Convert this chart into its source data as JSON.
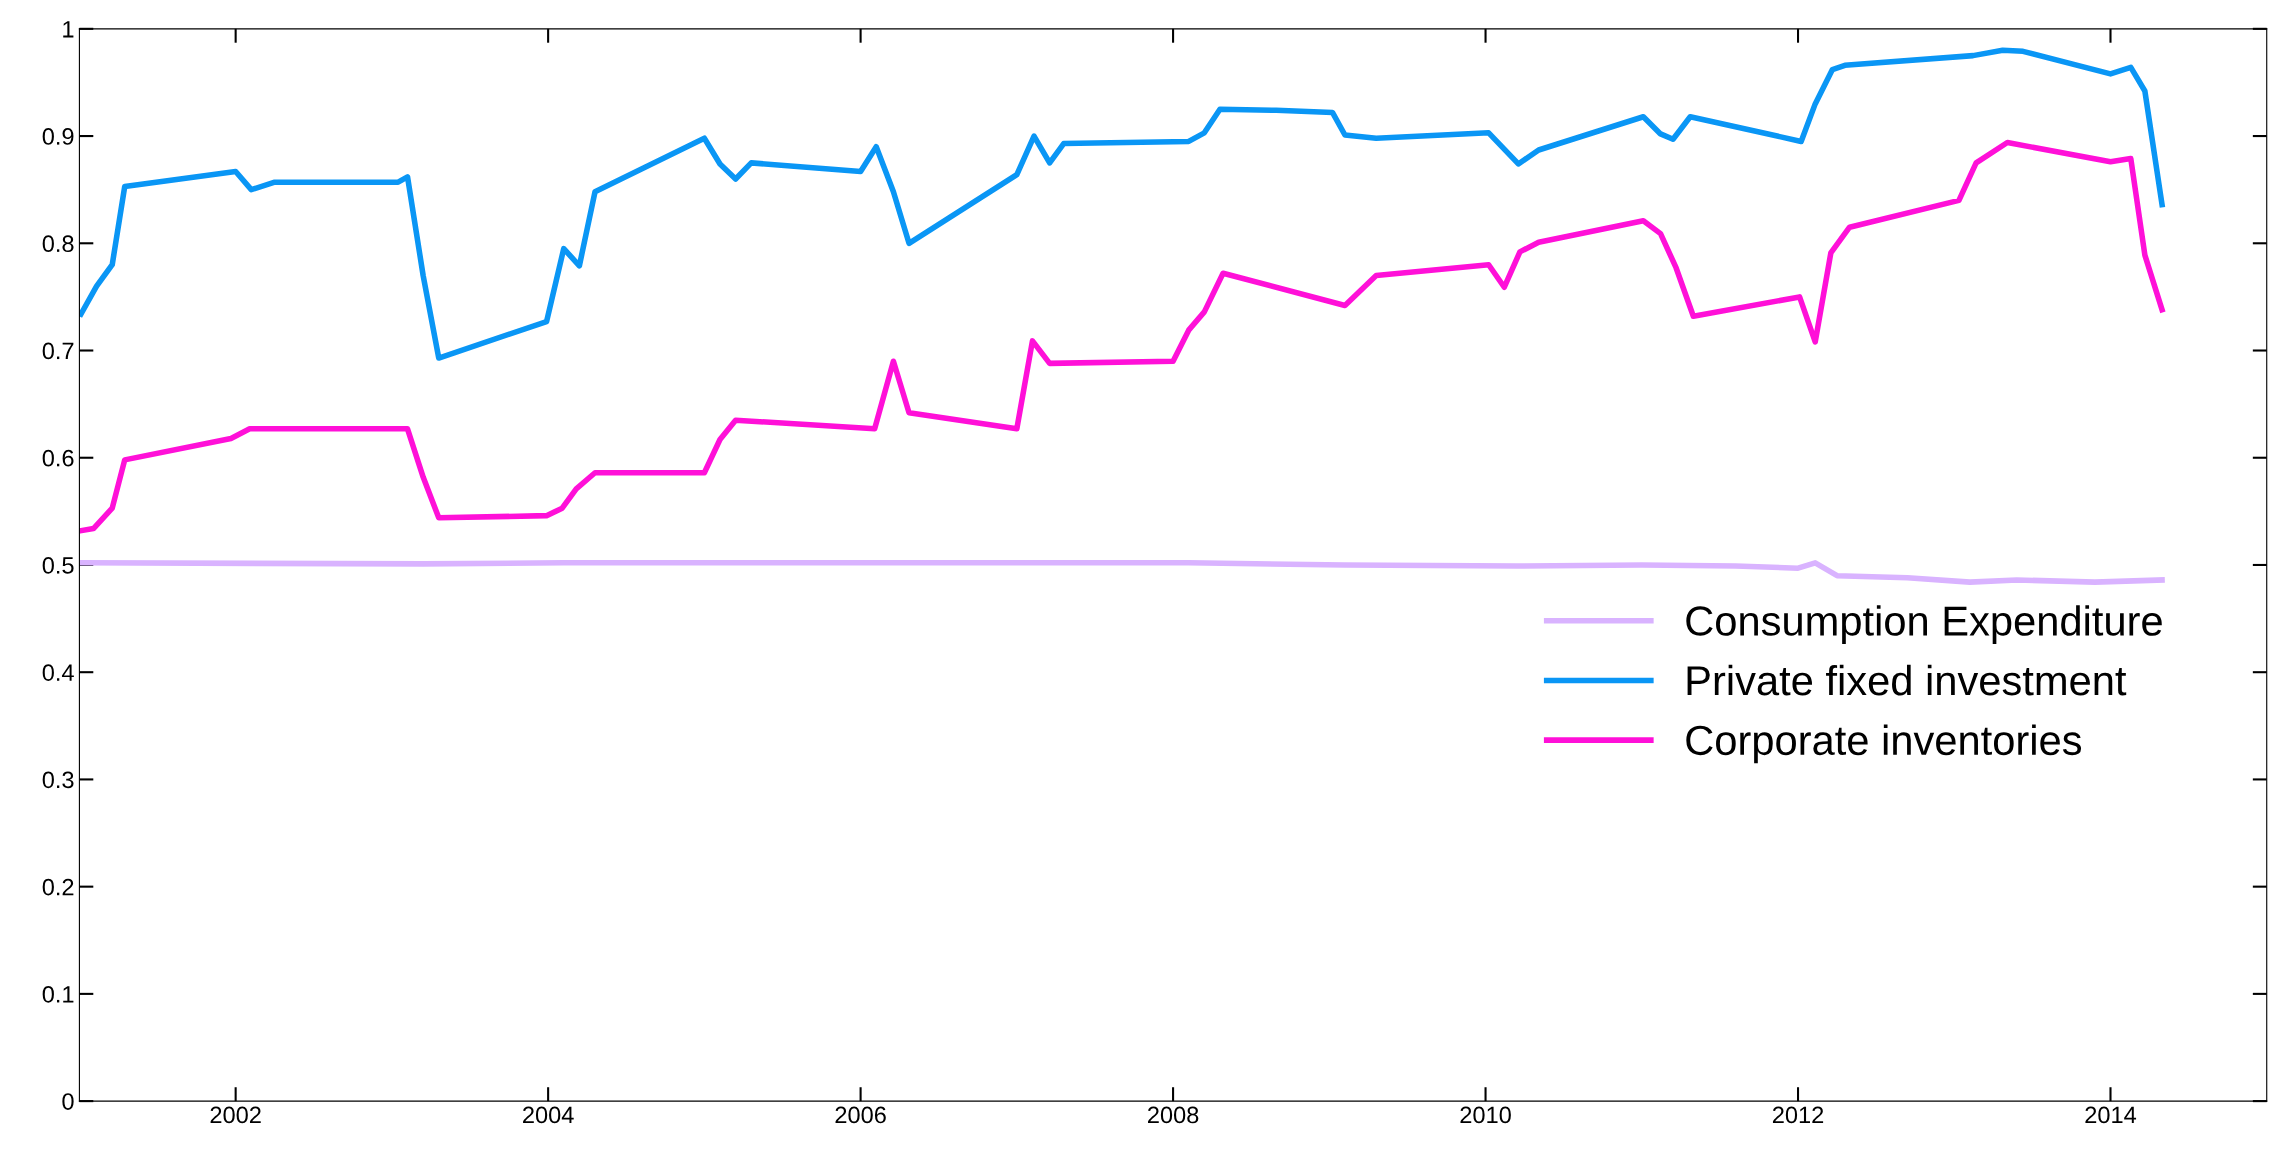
{
  "chart_data": {
    "type": "line",
    "xlim": [
      2001,
      2015
    ],
    "xticks": [
      2002,
      2004,
      2006,
      2008,
      2010,
      2012,
      2014
    ],
    "ylim": [
      0,
      1
    ],
    "yticks": [
      0,
      0.1,
      0.2,
      0.3,
      0.4,
      0.5,
      0.6,
      0.7,
      0.8,
      0.9,
      1
    ],
    "grid": false,
    "legend": "bottom right",
    "marker": "none",
    "line_style": "solid",
    "series": [
      {
        "name": "Consumption Expenditure",
        "color": "#d9b3ff",
        "x": [
          2001.0,
          2003.2,
          2004.1,
          2006.0,
          2008.1,
          2009.1,
          2010.2,
          2011.0,
          2011.6,
          2012.0,
          2012.11,
          2012.25,
          2012.7,
          2013.1,
          2013.4,
          2013.9,
          2014.33
        ],
        "values": [
          0.502,
          0.501,
          0.502,
          0.502,
          0.502,
          0.5,
          0.499,
          0.5,
          0.499,
          0.497,
          0.502,
          0.49,
          0.488,
          0.484,
          0.486,
          0.484,
          0.486
        ]
      },
      {
        "name": "Private fixed investment",
        "color": "#0a96f5",
        "x": [
          2001.01,
          2001.11,
          2001.21,
          2001.29,
          2002.0,
          2002.1,
          2002.25,
          2003.04,
          2003.1,
          2003.2,
          2003.3,
          2003.99,
          2004.1,
          2004.2,
          2004.3,
          2005.0,
          2005.1,
          2005.2,
          2005.3,
          2006.0,
          2006.1,
          2006.21,
          2006.31,
          2007.0,
          2007.11,
          2007.21,
          2007.3,
          2008.1,
          2008.2,
          2008.3,
          2008.66,
          2009.02,
          2009.1,
          2009.3,
          2010.02,
          2010.21,
          2010.34,
          2011.01,
          2011.12,
          2011.2,
          2011.31,
          2012.02,
          2012.11,
          2012.22,
          2012.3,
          2013.12,
          2013.31,
          2013.44,
          2014.0,
          2014.13,
          2014.22,
          2014.33
        ],
        "values": [
          0.734,
          0.76,
          0.78,
          0.853,
          0.867,
          0.85,
          0.857,
          0.857,
          0.862,
          0.77,
          0.693,
          0.727,
          0.795,
          0.779,
          0.848,
          0.898,
          0.874,
          0.86,
          0.875,
          0.867,
          0.89,
          0.848,
          0.8,
          0.864,
          0.9,
          0.875,
          0.893,
          0.895,
          0.903,
          0.925,
          0.924,
          0.922,
          0.901,
          0.898,
          0.903,
          0.874,
          0.887,
          0.918,
          0.902,
          0.897,
          0.918,
          0.895,
          0.93,
          0.962,
          0.966,
          0.975,
          0.98,
          0.979,
          0.958,
          0.964,
          0.942,
          0.836
        ]
      },
      {
        "name": "Corporate inventories",
        "color": "#ff10d8",
        "x": [
          2001.01,
          2001.09,
          2001.21,
          2001.29,
          2001.97,
          2002.09,
          2003.1,
          2003.2,
          2003.3,
          2003.99,
          2004.09,
          2004.18,
          2004.3,
          2005.0,
          2005.1,
          2005.2,
          2006.09,
          2006.21,
          2006.31,
          2007.0,
          2007.1,
          2007.21,
          2008.0,
          2008.1,
          2008.2,
          2008.32,
          2009.1,
          2009.3,
          2010.02,
          2010.12,
          2010.22,
          2010.34,
          2011.01,
          2011.12,
          2011.22,
          2011.33,
          2012.01,
          2012.11,
          2012.21,
          2012.33,
          2013.03,
          2013.14,
          2013.34,
          2014.0,
          2014.13,
          2014.22,
          2014.33
        ],
        "values": [
          0.532,
          0.534,
          0.553,
          0.598,
          0.618,
          0.627,
          0.627,
          0.582,
          0.544,
          0.546,
          0.553,
          0.571,
          0.586,
          0.586,
          0.617,
          0.635,
          0.627,
          0.69,
          0.642,
          0.627,
          0.709,
          0.688,
          0.69,
          0.719,
          0.736,
          0.772,
          0.742,
          0.77,
          0.78,
          0.759,
          0.792,
          0.801,
          0.821,
          0.809,
          0.777,
          0.732,
          0.75,
          0.708,
          0.791,
          0.815,
          0.84,
          0.875,
          0.894,
          0.876,
          0.879,
          0.789,
          0.738
        ]
      }
    ]
  }
}
